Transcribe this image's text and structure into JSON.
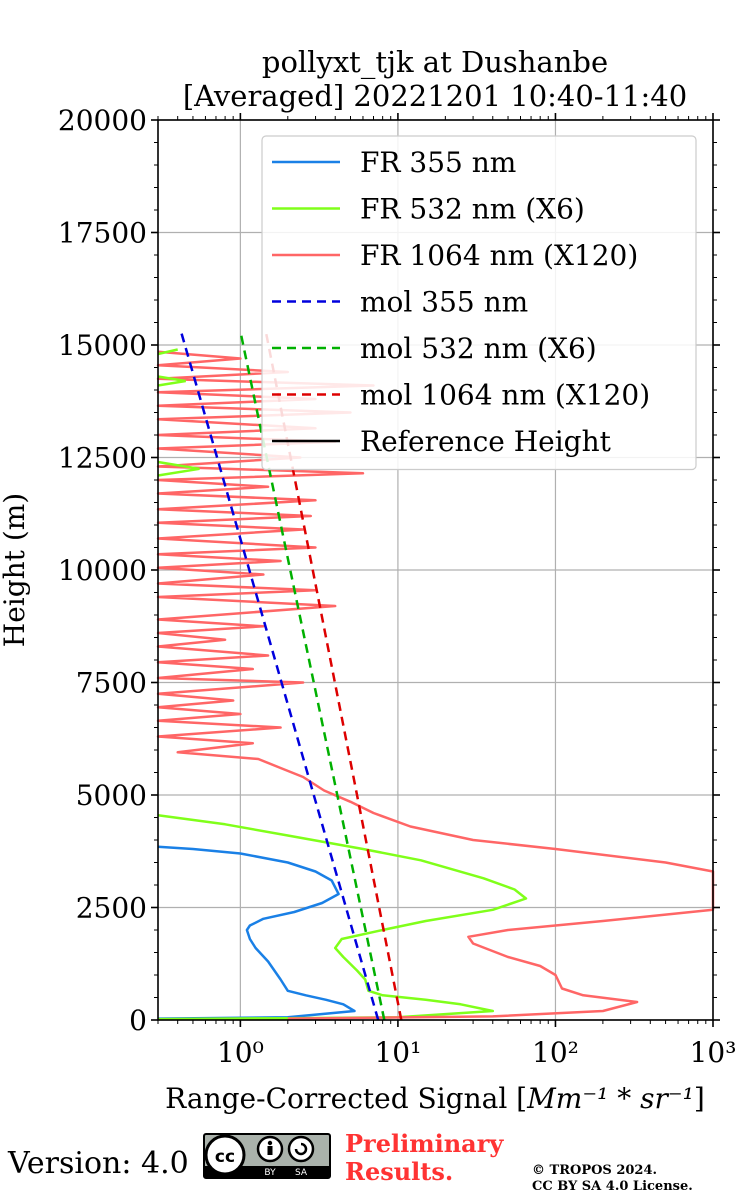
{
  "chart_data": {
    "type": "line",
    "title_line1": "pollyxt_tjk at Dushanbe",
    "title_line2": "[Averaged] 20221201 10:40-11:40",
    "xlabel_text": "Range-Corrected Signal [",
    "xlabel_unit": "Mm⁻¹ * sr⁻¹",
    "xlabel_close": "]",
    "ylabel": "Height (m)",
    "x_scale": "log",
    "xlim": [
      0.3,
      1000
    ],
    "ylim": [
      0,
      20000
    ],
    "x_major_ticks": [
      1,
      10,
      100,
      1000
    ],
    "x_tick_labels": [
      "10⁰",
      "10¹",
      "10²",
      "10³"
    ],
    "y_ticks": [
      0,
      2500,
      5000,
      7500,
      10000,
      12500,
      15000,
      17500,
      20000
    ],
    "y_tick_labels": [
      "0",
      "2500",
      "5000",
      "7500",
      "10000",
      "12500",
      "15000",
      "17500",
      "20000"
    ],
    "grid": true,
    "legend_position": "top-right",
    "series": [
      {
        "name": "FR 355 nm",
        "color": "#1a80e6",
        "style": "solid",
        "points": [
          [
            0.3,
            30
          ],
          [
            2,
            60
          ],
          [
            5.3,
            200
          ],
          [
            4.5,
            350
          ],
          [
            3.5,
            450
          ],
          [
            2.6,
            550
          ],
          [
            2,
            650
          ],
          [
            1.8,
            900
          ],
          [
            1.5,
            1300
          ],
          [
            1.25,
            1600
          ],
          [
            1.15,
            1800
          ],
          [
            1.1,
            2000
          ],
          [
            1.15,
            2100
          ],
          [
            1.4,
            2250
          ],
          [
            2.2,
            2400
          ],
          [
            3.3,
            2600
          ],
          [
            4.2,
            2800
          ],
          [
            3.8,
            3100
          ],
          [
            3,
            3300
          ],
          [
            2,
            3500
          ],
          [
            1,
            3700
          ],
          [
            0.5,
            3800
          ],
          [
            0.3,
            3850
          ]
        ]
      },
      {
        "name": "FR 532 nm (X6)",
        "color": "#80ff1a",
        "style": "solid",
        "points": [
          [
            0.3,
            20
          ],
          [
            2,
            40
          ],
          [
            10,
            60
          ],
          [
            40,
            200
          ],
          [
            25,
            350
          ],
          [
            15,
            450
          ],
          [
            8,
            550
          ],
          [
            6.5,
            650
          ],
          [
            6.2,
            900
          ],
          [
            5.5,
            1100
          ],
          [
            4.5,
            1400
          ],
          [
            4,
            1600
          ],
          [
            4.4,
            1800
          ],
          [
            8,
            2000
          ],
          [
            15,
            2200
          ],
          [
            40,
            2450
          ],
          [
            65,
            2700
          ],
          [
            55,
            2900
          ],
          [
            35,
            3150
          ],
          [
            14,
            3550
          ],
          [
            6,
            3800
          ],
          [
            2,
            4100
          ],
          [
            0.8,
            4350
          ],
          [
            0.3,
            4550
          ]
        ]
      },
      {
        "name": "FR 1064 nm (X120)",
        "color": "#ff6666",
        "style": "solid",
        "points": [
          [
            2,
            30
          ],
          [
            40,
            80
          ],
          [
            200,
            200
          ],
          [
            330,
            400
          ],
          [
            150,
            550
          ],
          [
            110,
            700
          ],
          [
            100,
            1000
          ],
          [
            80,
            1200
          ],
          [
            50,
            1400
          ],
          [
            30,
            1700
          ],
          [
            28,
            1850
          ],
          [
            50,
            2000
          ],
          [
            200,
            2200
          ],
          [
            1000,
            2450
          ],
          [
            1000,
            3300
          ],
          [
            500,
            3500
          ],
          [
            100,
            3800
          ],
          [
            30,
            4000
          ],
          [
            12,
            4300
          ],
          [
            7,
            4600
          ],
          [
            5,
            4850
          ],
          [
            3.4,
            5100
          ],
          [
            2.5,
            5400
          ],
          [
            1.8,
            5600
          ],
          [
            1.3,
            5800
          ],
          [
            0.4,
            5950
          ],
          [
            1.2,
            6150
          ],
          [
            0.3,
            6300
          ],
          [
            1.8,
            6500
          ],
          [
            0.3,
            6650
          ],
          [
            1,
            6800
          ],
          [
            0.3,
            6950
          ],
          [
            0.9,
            7100
          ],
          [
            0.3,
            7250
          ],
          [
            2.5,
            7500
          ],
          [
            0.3,
            7600
          ],
          [
            1.2,
            7800
          ],
          [
            0.3,
            7950
          ],
          [
            1.5,
            8100
          ],
          [
            0.3,
            8300
          ],
          [
            0.8,
            8450
          ],
          [
            0.3,
            8600
          ],
          [
            1.4,
            8750
          ],
          [
            0.3,
            8900
          ],
          [
            4,
            9200
          ],
          [
            0.3,
            9400
          ],
          [
            3,
            9550
          ],
          [
            0.3,
            9700
          ],
          [
            1.4,
            9900
          ],
          [
            0.3,
            10050
          ],
          [
            1.8,
            10200
          ],
          [
            0.3,
            10350
          ],
          [
            3,
            10500
          ],
          [
            0.3,
            10700
          ],
          [
            2.5,
            10900
          ],
          [
            0.3,
            11050
          ],
          [
            2.8,
            11200
          ],
          [
            0.3,
            11350
          ],
          [
            3,
            11550
          ],
          [
            0.3,
            11700
          ],
          [
            1.5,
            11850
          ],
          [
            0.3,
            12000
          ],
          [
            6,
            12150
          ],
          [
            0.3,
            12300
          ],
          [
            2.4,
            12500
          ],
          [
            0.3,
            12700
          ],
          [
            4,
            12850
          ],
          [
            0.3,
            13000
          ],
          [
            3,
            13150
          ],
          [
            0.3,
            13350
          ],
          [
            5,
            13500
          ],
          [
            0.3,
            13650
          ],
          [
            3,
            13800
          ],
          [
            0.3,
            13950
          ],
          [
            7,
            14100
          ],
          [
            0.3,
            14250
          ],
          [
            2,
            14400
          ],
          [
            0.3,
            14550
          ],
          [
            1,
            14700
          ],
          [
            0.3,
            14850
          ]
        ]
      },
      {
        "name": "mol 355 nm",
        "color": "#0000dd",
        "style": "dashed",
        "points": [
          [
            7.5,
            0
          ],
          [
            0.42,
            15300
          ]
        ]
      },
      {
        "name": "mol 532 nm (X6)",
        "color": "#00b000",
        "style": "dashed",
        "points": [
          [
            8.2,
            0
          ],
          [
            1.0,
            15300
          ]
        ]
      },
      {
        "name": "mol 1064 nm (X120)",
        "color": "#dd0000",
        "style": "dashed",
        "points": [
          [
            10.5,
            0
          ],
          [
            1.45,
            15300
          ]
        ]
      },
      {
        "name": "Reference Height",
        "color": "#000000",
        "style": "solid",
        "points": []
      }
    ],
    "green_edge_points": [
      [
        0.3,
        12100
      ],
      [
        0.55,
        12250
      ],
      [
        0.3,
        12400
      ],
      [
        0.3,
        14100
      ],
      [
        0.45,
        14200
      ],
      [
        0.3,
        14300
      ],
      [
        0.3,
        14800
      ],
      [
        0.4,
        14900
      ]
    ]
  },
  "footer": {
    "version": "Version: 4.0",
    "preliminary_line1": "Preliminary",
    "preliminary_line2": "Results.",
    "copyright_line1": "© TROPOS 2024.",
    "copyright_line2": "CC BY SA 4.0 License."
  }
}
